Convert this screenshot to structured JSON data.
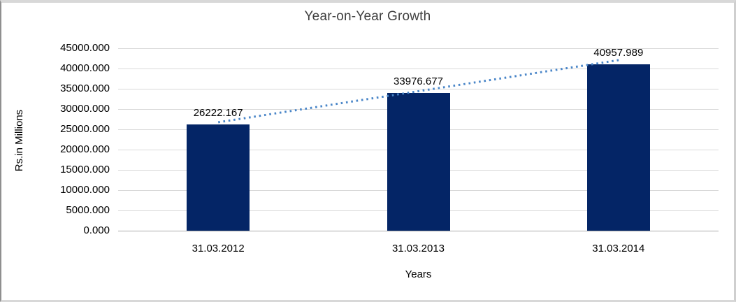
{
  "chart_data": {
    "type": "bar",
    "title": "Year-on-Year Growth",
    "xlabel": "Years",
    "ylabel": "Rs.in Millions",
    "categories": [
      "31.03.2012",
      "31.03.2013",
      "31.03.2014"
    ],
    "values": [
      26222.167,
      33976.677,
      40957.989
    ],
    "data_labels": [
      "26222.167",
      "33976.677",
      "40957.989"
    ],
    "y_ticks": [
      "45000.000",
      "40000.000",
      "35000.000",
      "30000.000",
      "25000.000",
      "20000.000",
      "15000.000",
      "10000.000",
      "5000.000",
      "0.000"
    ],
    "y_tick_values": [
      45000,
      40000,
      35000,
      30000,
      25000,
      20000,
      15000,
      10000,
      5000,
      0
    ],
    "ylim": [
      0,
      45000
    ],
    "y_step": 5000,
    "grid": true,
    "legend": "none",
    "trendline": true,
    "colors": {
      "bar": "#042566",
      "trendline": "#4a86c8",
      "gridline": "#d9d9d9",
      "axis_line": "#ababab",
      "text": "#000000",
      "title_text": "#3f3f3f",
      "frame_border": "#d8d8d8"
    }
  }
}
